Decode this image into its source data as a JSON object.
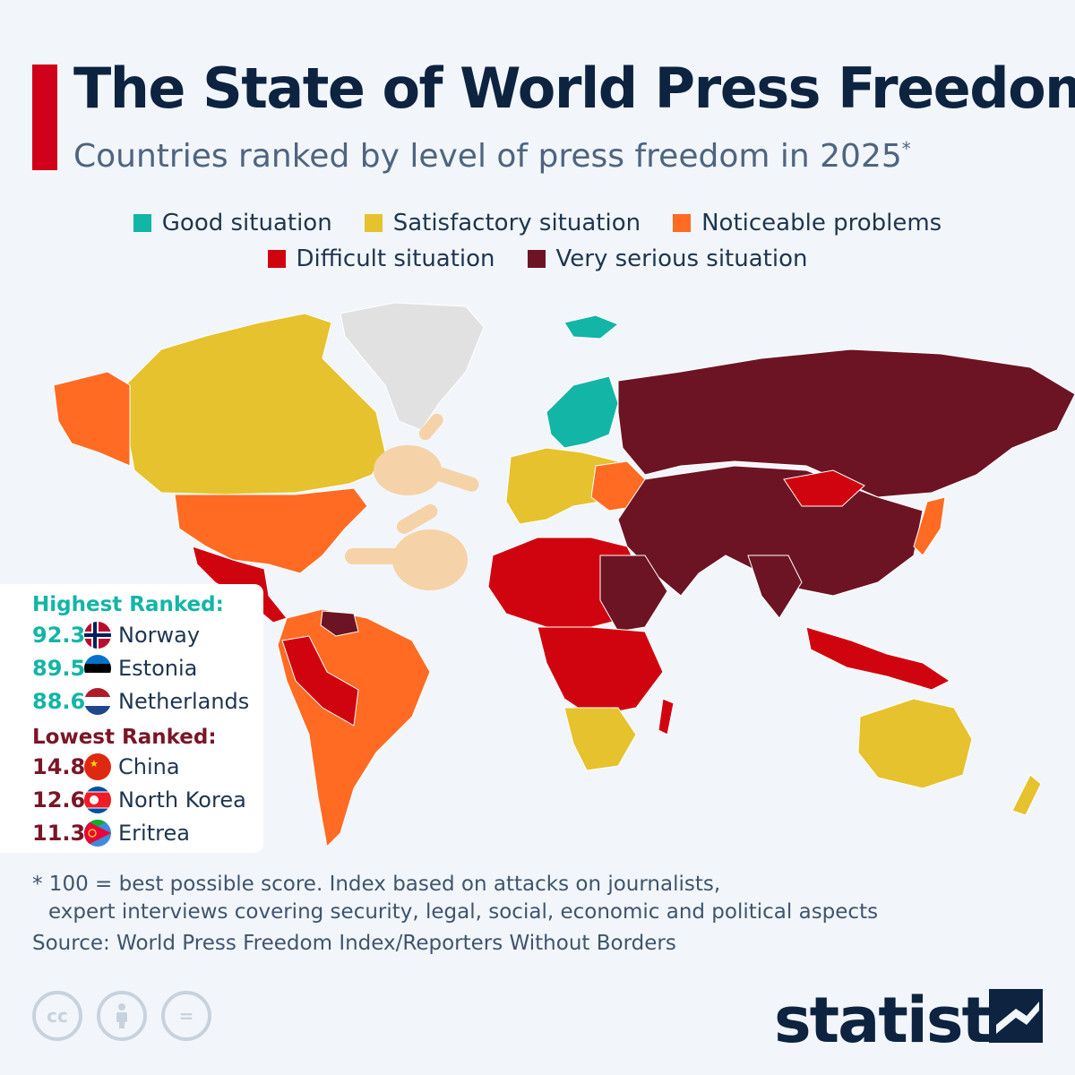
{
  "header": {
    "title": "The State of World Press Freedom",
    "subtitle": "Countries ranked by level of press freedom in 2025",
    "subtitle_marker": "*"
  },
  "legend": [
    {
      "label": "Good situation",
      "color": "#13b5a6"
    },
    {
      "label": "Satisfactory situation",
      "color": "#e6c22e"
    },
    {
      "label": "Noticeable problems",
      "color": "#ff6b23"
    },
    {
      "label": "Difficult situation",
      "color": "#d0040f"
    },
    {
      "label": "Very serious situation",
      "color": "#6d1424"
    }
  ],
  "rankings": {
    "highest_label": "Highest Ranked:",
    "highest": [
      {
        "score": "92.3",
        "country": "Norway",
        "flag": "norway-flag"
      },
      {
        "score": "89.5",
        "country": "Estonia",
        "flag": "estonia-flag"
      },
      {
        "score": "88.6",
        "country": "Netherlands",
        "flag": "netherlands-flag"
      }
    ],
    "lowest_label": "Lowest Ranked:",
    "lowest": [
      {
        "score": "14.8",
        "country": "China",
        "flag": "china-flag"
      },
      {
        "score": "12.6",
        "country": "North Korea",
        "flag": "north-korea-flag"
      },
      {
        "score": "11.3",
        "country": "Eritrea",
        "flag": "eritrea-flag"
      }
    ],
    "highest_color": "#13b5a6",
    "lowest_color": "#7a1626"
  },
  "map": {
    "regions": [
      {
        "name": "Greenland",
        "status": "no data"
      },
      {
        "name": "Canada",
        "status": "Satisfactory situation"
      },
      {
        "name": "Alaska",
        "status": "Noticeable problems"
      },
      {
        "name": "United States",
        "status": "Noticeable problems"
      },
      {
        "name": "Mexico",
        "status": "Difficult situation"
      },
      {
        "name": "South America",
        "status": "Noticeable problems"
      },
      {
        "name": "Venezuela",
        "status": "Very serious situation"
      },
      {
        "name": "Scandinavia",
        "status": "Good situation"
      },
      {
        "name": "Western Europe",
        "status": "Satisfactory situation"
      },
      {
        "name": "Russia",
        "status": "Very serious situation"
      },
      {
        "name": "China",
        "status": "Very serious situation"
      },
      {
        "name": "Mongolia",
        "status": "Difficult situation"
      },
      {
        "name": "North Africa",
        "status": "Difficult situation"
      },
      {
        "name": "Southern Africa",
        "status": "Satisfactory situation"
      },
      {
        "name": "Australia",
        "status": "Satisfactory situation"
      },
      {
        "name": "New Zealand",
        "status": "Satisfactory situation"
      },
      {
        "name": "Japan",
        "status": "Noticeable problems"
      },
      {
        "name": "Indonesia",
        "status": "Difficult situation"
      }
    ],
    "no_data_color": "#e1e1e1",
    "icons": [
      "pointing-hand-right-icon",
      "pointing-hand-left-icon"
    ]
  },
  "footnote": {
    "line1": "* 100 = best possible score. Index based on attacks on journalists,",
    "line2": "expert interviews covering security, legal, social, economic and political aspects"
  },
  "source": "Source: World Press Freedom Index/Reporters Without Borders",
  "license_icons": [
    {
      "name": "cc-icon",
      "glyph": "cc"
    },
    {
      "name": "attribution-icon",
      "glyph": ""
    },
    {
      "name": "no-derivatives-icon",
      "glyph": "="
    }
  ],
  "brand": {
    "name": "statista"
  }
}
